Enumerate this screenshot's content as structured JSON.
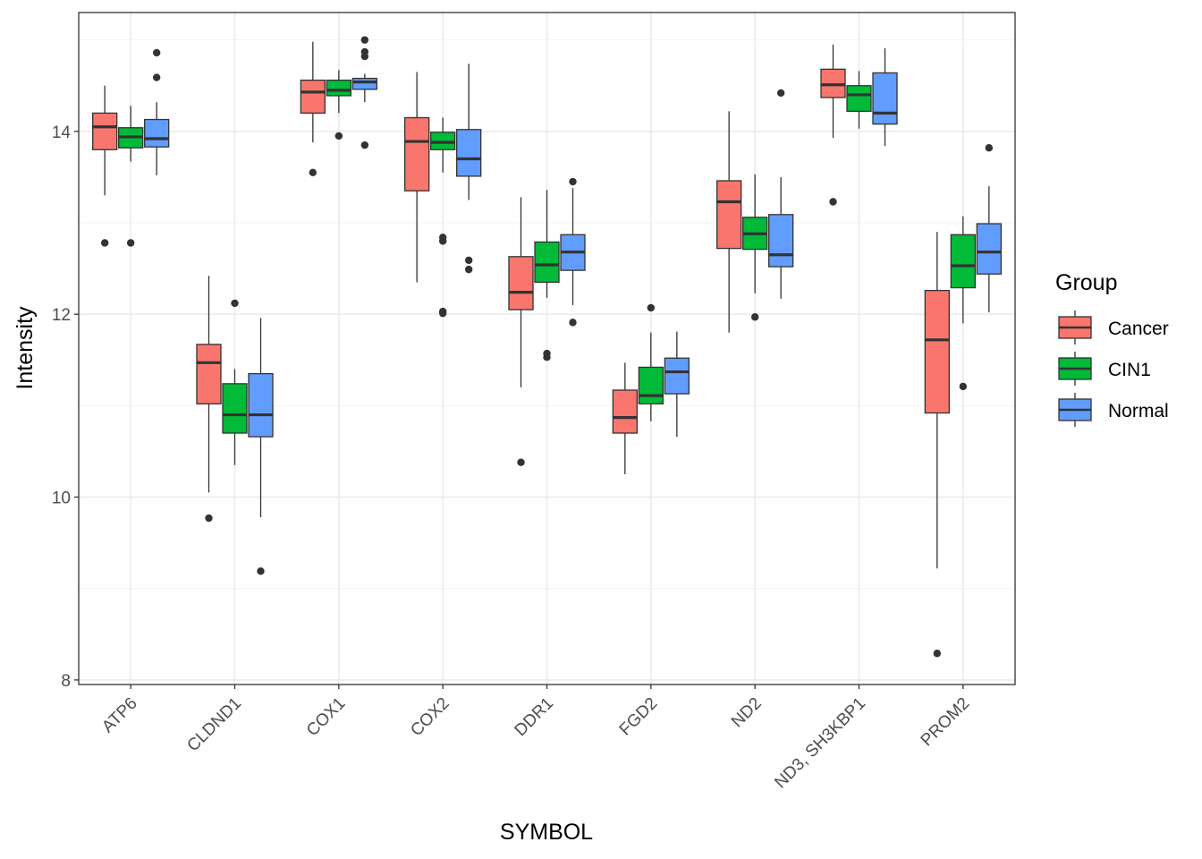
{
  "chart_data": {
    "type": "boxplot",
    "xlabel": "SYMBOL",
    "ylabel": "Intensity",
    "ylim": [
      7.95,
      15.3
    ],
    "yticks": [
      8,
      10,
      12,
      14
    ],
    "grid": true,
    "legend": {
      "title": "Group",
      "placement": "right"
    },
    "categories": [
      "ATP6",
      "CLDND1",
      "COX1",
      "COX2",
      "DDR1",
      "FGD2",
      "ND2",
      "ND3, SH3KBP1",
      "PROM2"
    ],
    "series": [
      {
        "name": "Cancer",
        "color": "#F8766D",
        "boxes": [
          {
            "min": 13.3,
            "q1": 13.8,
            "median": 14.05,
            "q3": 14.2,
            "max": 14.5,
            "outliers": [
              12.78
            ]
          },
          {
            "min": 10.05,
            "q1": 11.02,
            "median": 11.47,
            "q3": 11.67,
            "max": 12.42,
            "outliers": [
              9.77
            ]
          },
          {
            "min": 13.88,
            "q1": 14.2,
            "median": 14.43,
            "q3": 14.56,
            "max": 14.98,
            "outliers": [
              13.55
            ]
          },
          {
            "min": 12.35,
            "q1": 13.35,
            "median": 13.89,
            "q3": 14.15,
            "max": 14.65,
            "outliers": []
          },
          {
            "min": 11.2,
            "q1": 12.05,
            "median": 12.24,
            "q3": 12.63,
            "max": 13.28,
            "outliers": [
              10.38
            ]
          },
          {
            "min": 10.25,
            "q1": 10.7,
            "median": 10.87,
            "q3": 11.17,
            "max": 11.47,
            "outliers": []
          },
          {
            "min": 11.8,
            "q1": 12.72,
            "median": 13.23,
            "q3": 13.46,
            "max": 14.22,
            "outliers": []
          },
          {
            "min": 13.93,
            "q1": 14.37,
            "median": 14.51,
            "q3": 14.68,
            "max": 14.95,
            "outliers": [
              13.23
            ]
          },
          {
            "min": 9.22,
            "q1": 10.92,
            "median": 11.72,
            "q3": 12.26,
            "max": 12.9,
            "outliers": [
              8.29
            ]
          }
        ]
      },
      {
        "name": "CIN1",
        "color": "#00BA38",
        "boxes": [
          {
            "min": 13.67,
            "q1": 13.82,
            "median": 13.94,
            "q3": 14.04,
            "max": 14.28,
            "outliers": [
              12.78
            ]
          },
          {
            "min": 10.35,
            "q1": 10.7,
            "median": 10.9,
            "q3": 11.24,
            "max": 11.4,
            "outliers": [
              12.12
            ]
          },
          {
            "min": 14.2,
            "q1": 14.39,
            "median": 14.45,
            "q3": 14.56,
            "max": 14.67,
            "outliers": [
              13.95
            ]
          },
          {
            "min": 13.55,
            "q1": 13.8,
            "median": 13.88,
            "q3": 13.99,
            "max": 14.15,
            "outliers": [
              12.8,
              12.84,
              12.01,
              12.03
            ]
          },
          {
            "min": 12.18,
            "q1": 12.35,
            "median": 12.54,
            "q3": 12.79,
            "max": 13.36,
            "outliers": [
              11.53,
              11.57
            ]
          },
          {
            "min": 10.83,
            "q1": 11.02,
            "median": 11.11,
            "q3": 11.42,
            "max": 11.8,
            "outliers": [
              12.07
            ]
          },
          {
            "min": 12.23,
            "q1": 12.71,
            "median": 12.88,
            "q3": 13.06,
            "max": 13.53,
            "outliers": [
              11.97
            ]
          },
          {
            "min": 14.03,
            "q1": 14.22,
            "median": 14.4,
            "q3": 14.5,
            "max": 14.66,
            "outliers": []
          },
          {
            "min": 11.9,
            "q1": 12.29,
            "median": 12.53,
            "q3": 12.87,
            "max": 13.07,
            "outliers": [
              11.21
            ]
          }
        ]
      },
      {
        "name": "Normal",
        "color": "#619CFF",
        "boxes": [
          {
            "min": 13.52,
            "q1": 13.83,
            "median": 13.92,
            "q3": 14.13,
            "max": 14.32,
            "outliers": [
              14.86,
              14.59
            ]
          },
          {
            "min": 9.78,
            "q1": 10.66,
            "median": 10.9,
            "q3": 11.35,
            "max": 11.96,
            "outliers": [
              9.19
            ]
          },
          {
            "min": 14.32,
            "q1": 14.46,
            "median": 14.54,
            "q3": 14.58,
            "max": 14.63,
            "outliers": [
              15.0,
              14.87,
              14.82,
              13.85
            ]
          },
          {
            "min": 13.25,
            "q1": 13.51,
            "median": 13.7,
            "q3": 14.02,
            "max": 14.74,
            "outliers": [
              12.59,
              12.49
            ]
          },
          {
            "min": 12.1,
            "q1": 12.48,
            "median": 12.68,
            "q3": 12.87,
            "max": 13.38,
            "outliers": [
              13.45,
              11.91
            ]
          },
          {
            "min": 10.66,
            "q1": 11.13,
            "median": 11.37,
            "q3": 11.52,
            "max": 11.81,
            "outliers": []
          },
          {
            "min": 12.17,
            "q1": 12.52,
            "median": 12.65,
            "q3": 13.09,
            "max": 13.5,
            "outliers": [
              14.42
            ]
          },
          {
            "min": 13.84,
            "q1": 14.08,
            "median": 14.2,
            "q3": 14.64,
            "max": 14.91,
            "outliers": []
          },
          {
            "min": 12.02,
            "q1": 12.44,
            "median": 12.68,
            "q3": 12.99,
            "max": 13.4,
            "outliers": [
              13.82
            ]
          }
        ]
      }
    ]
  }
}
